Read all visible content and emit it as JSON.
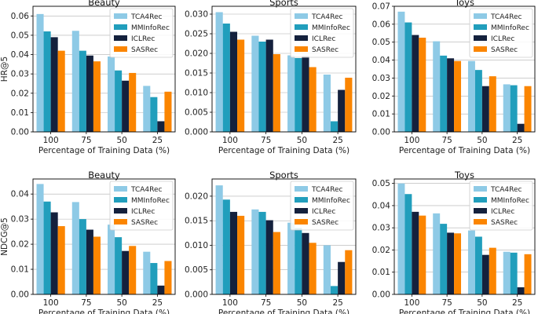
{
  "colors": {
    "TCA4Rec": "#8ecae6",
    "MMInfoRec": "#219ebc",
    "ICLRec": "#14213d",
    "SASRec": "#fb8500",
    "grid": "#b0b0b0",
    "axis": "#000000"
  },
  "chart_data": [
    {
      "type": "bar",
      "title": "Beauty",
      "xlabel": "Percentage of Training Data (%)",
      "ylabel": "HR@5",
      "categories": [
        "100",
        "75",
        "50",
        "25"
      ],
      "ylim": [
        0,
        0.065
      ],
      "yticks": [
        0,
        0.01,
        0.02,
        0.03,
        0.04,
        0.05,
        0.06
      ],
      "ytick_labels": [
        "0.00",
        "0.01",
        "0.02",
        "0.03",
        "0.04",
        "0.05",
        "0.06"
      ],
      "legend": "top-right",
      "series": [
        {
          "name": "TCA4Rec",
          "values": [
            0.061,
            0.0523,
            0.039,
            0.0238
          ]
        },
        {
          "name": "MMInfoRec",
          "values": [
            0.052,
            0.042,
            0.0318,
            0.018
          ]
        },
        {
          "name": "ICLRec",
          "values": [
            0.049,
            0.0395,
            0.0265,
            0.0055
          ]
        },
        {
          "name": "SASRec",
          "values": [
            0.042,
            0.0365,
            0.0305,
            0.0208
          ]
        }
      ]
    },
    {
      "type": "bar",
      "title": "Sports",
      "xlabel": "Percentage of Training Data (%)",
      "ylabel": "",
      "categories": [
        "100",
        "75",
        "50",
        "25"
      ],
      "ylim": [
        0,
        0.032
      ],
      "yticks": [
        0,
        0.005,
        0.01,
        0.015,
        0.02,
        0.025,
        0.03
      ],
      "ytick_labels": [
        "0.000",
        "0.005",
        "0.010",
        "0.015",
        "0.020",
        "0.025",
        "0.030"
      ],
      "legend": "top-right",
      "series": [
        {
          "name": "TCA4Rec",
          "values": [
            0.0305,
            0.0245,
            0.0195,
            0.0146
          ]
        },
        {
          "name": "MMInfoRec",
          "values": [
            0.0276,
            0.023,
            0.0188,
            0.0027
          ]
        },
        {
          "name": "ICLRec",
          "values": [
            0.0255,
            0.0235,
            0.0193,
            0.0107
          ]
        },
        {
          "name": "SASRec",
          "values": [
            0.0235,
            0.0198,
            0.0165,
            0.0138
          ]
        }
      ]
    },
    {
      "type": "bar",
      "title": "Toys",
      "xlabel": "Percentage of Training Data (%)",
      "ylabel": "",
      "categories": [
        "100",
        "75",
        "50",
        "25"
      ],
      "ylim": [
        0,
        0.07
      ],
      "yticks": [
        0,
        0.01,
        0.02,
        0.03,
        0.04,
        0.05,
        0.06,
        0.07
      ],
      "ytick_labels": [
        "0.00",
        "0.01",
        "0.02",
        "0.03",
        "0.04",
        "0.05",
        "0.06",
        "0.07"
      ],
      "legend": "top-right",
      "series": [
        {
          "name": "TCA4Rec",
          "values": [
            0.067,
            0.0505,
            0.0395,
            0.0265
          ]
        },
        {
          "name": "MMInfoRec",
          "values": [
            0.061,
            0.0425,
            0.0345,
            0.026
          ]
        },
        {
          "name": "ICLRec",
          "values": [
            0.054,
            0.041,
            0.0255,
            0.0045
          ]
        },
        {
          "name": "SASRec",
          "values": [
            0.0525,
            0.0395,
            0.031,
            0.0255
          ]
        }
      ]
    },
    {
      "type": "bar",
      "title": "Beauty",
      "xlabel": "Percentage of Training Data (%)",
      "ylabel": "NDCG@5",
      "categories": [
        "100",
        "75",
        "50",
        "25"
      ],
      "ylim": [
        0,
        0.046
      ],
      "yticks": [
        0,
        0.01,
        0.02,
        0.03,
        0.04
      ],
      "ytick_labels": [
        "0.00",
        "0.01",
        "0.02",
        "0.03",
        "0.04"
      ],
      "legend": "top-right",
      "series": [
        {
          "name": "TCA4Rec",
          "values": [
            0.044,
            0.0368,
            0.0278,
            0.017
          ]
        },
        {
          "name": "MMInfoRec",
          "values": [
            0.037,
            0.03,
            0.0228,
            0.0125
          ]
        },
        {
          "name": "ICLRec",
          "values": [
            0.0327,
            0.0258,
            0.0173,
            0.0035
          ]
        },
        {
          "name": "SASRec",
          "values": [
            0.0272,
            0.023,
            0.0193,
            0.0133
          ]
        }
      ]
    },
    {
      "type": "bar",
      "title": "Sports",
      "xlabel": "Percentage of Training Data (%)",
      "ylabel": "",
      "categories": [
        "100",
        "75",
        "50",
        "25"
      ],
      "ylim": [
        0,
        0.0235
      ],
      "yticks": [
        0,
        0.005,
        0.01,
        0.015,
        0.02
      ],
      "ytick_labels": [
        "0.000",
        "0.005",
        "0.010",
        "0.015",
        "0.020"
      ],
      "legend": "top-right",
      "series": [
        {
          "name": "TCA4Rec",
          "values": [
            0.0222,
            0.0173,
            0.0146,
            0.01
          ]
        },
        {
          "name": "MMInfoRec",
          "values": [
            0.0193,
            0.0168,
            0.0135,
            0.0017
          ]
        },
        {
          "name": "ICLRec",
          "values": [
            0.0168,
            0.0151,
            0.0125,
            0.0066
          ]
        },
        {
          "name": "SASRec",
          "values": [
            0.016,
            0.0127,
            0.0105,
            0.009
          ]
        }
      ]
    },
    {
      "type": "bar",
      "title": "Toys",
      "xlabel": "Percentage of Training Data (%)",
      "ylabel": "",
      "categories": [
        "100",
        "75",
        "50",
        "25"
      ],
      "ylim": [
        0,
        0.052
      ],
      "yticks": [
        0,
        0.01,
        0.02,
        0.03,
        0.04,
        0.05
      ],
      "ytick_labels": [
        "0.00",
        "0.01",
        "0.02",
        "0.03",
        "0.04",
        "0.05"
      ],
      "legend": "top-right",
      "series": [
        {
          "name": "TCA4Rec",
          "values": [
            0.05,
            0.0365,
            0.0288,
            0.0192
          ]
        },
        {
          "name": "MMInfoRec",
          "values": [
            0.0452,
            0.0318,
            0.026,
            0.0188
          ]
        },
        {
          "name": "ICLRec",
          "values": [
            0.0372,
            0.0278,
            0.0178,
            0.0032
          ]
        },
        {
          "name": "SASRec",
          "values": [
            0.0355,
            0.0275,
            0.021,
            0.0181
          ]
        }
      ]
    }
  ]
}
